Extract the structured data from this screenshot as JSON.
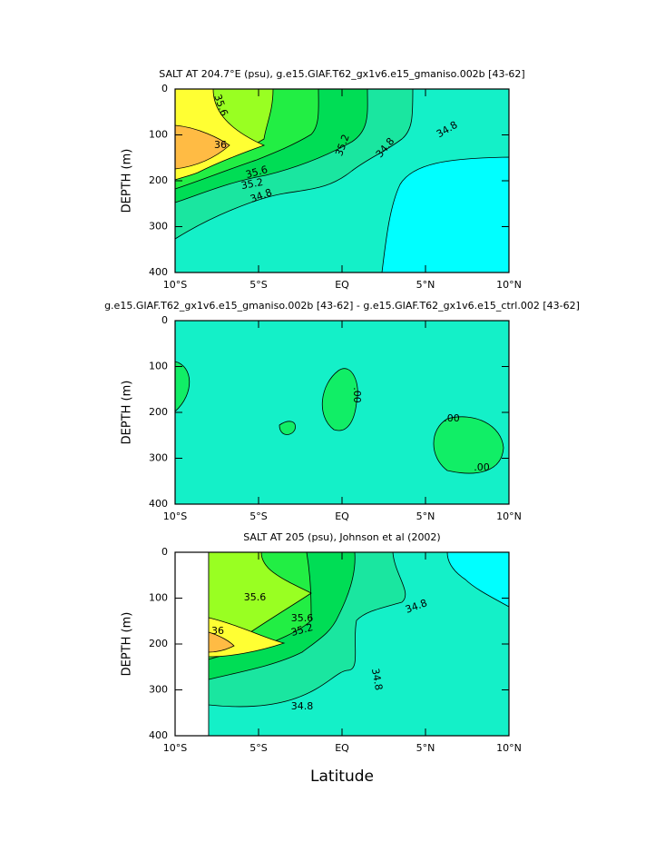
{
  "chart_data": [
    {
      "type": "contour",
      "title": "SALT AT 204.7°E (psu), g.e15.GIAF.T62_gx1v6.e15_gmaniso.002b [43-62]",
      "ylabel": "DEPTH (m)",
      "xlim": [
        -10,
        10
      ],
      "ylim": [
        0,
        400
      ],
      "y_inverted": true,
      "xticks": [
        {
          "value": -10,
          "label": "10°S"
        },
        {
          "value": -5,
          "label": "5°S"
        },
        {
          "value": 0,
          "label": "EQ"
        },
        {
          "value": 5,
          "label": "5°N"
        },
        {
          "value": 10,
          "label": "10°N"
        }
      ],
      "yticks": [
        0,
        100,
        200,
        300,
        400
      ],
      "contour_labels": [
        "35.6",
        "36",
        "35.6",
        "35.2",
        "34.8",
        "35.2",
        "34.8",
        "34.8"
      ]
    },
    {
      "type": "contour",
      "title": "g.e15.GIAF.T62_gx1v6.e15_gmaniso.002b [43-62] - g.e15.GIAF.T62_gx1v6.e15_ctrl.002 [43-62]",
      "ylabel": "DEPTH (m)",
      "xlim": [
        -10,
        10
      ],
      "ylim": [
        0,
        400
      ],
      "y_inverted": true,
      "xticks": [
        {
          "value": -10,
          "label": "10°S"
        },
        {
          "value": -5,
          "label": "5°S"
        },
        {
          "value": 0,
          "label": "EQ"
        },
        {
          "value": 5,
          "label": "5°N"
        },
        {
          "value": 10,
          "label": "10°N"
        }
      ],
      "yticks": [
        0,
        100,
        200,
        300,
        400
      ],
      "contour_labels": [
        ".00",
        ".00",
        ".00"
      ]
    },
    {
      "type": "contour",
      "title": "SALT AT 205 (psu), Johnson et al (2002)",
      "ylabel": "DEPTH (m)",
      "xlabel": "Latitude",
      "xlim": [
        -10,
        10
      ],
      "ylim": [
        0,
        400
      ],
      "y_inverted": true,
      "xticks": [
        {
          "value": -10,
          "label": "10°S"
        },
        {
          "value": -5,
          "label": "5°S"
        },
        {
          "value": 0,
          "label": "EQ"
        },
        {
          "value": 5,
          "label": "5°N"
        },
        {
          "value": 10,
          "label": "10°N"
        }
      ],
      "yticks": [
        0,
        100,
        200,
        300,
        400
      ],
      "contour_labels": [
        "35.6",
        "36",
        "35.6",
        "35.2",
        "34.8",
        "34.8",
        "34.8"
      ]
    }
  ]
}
